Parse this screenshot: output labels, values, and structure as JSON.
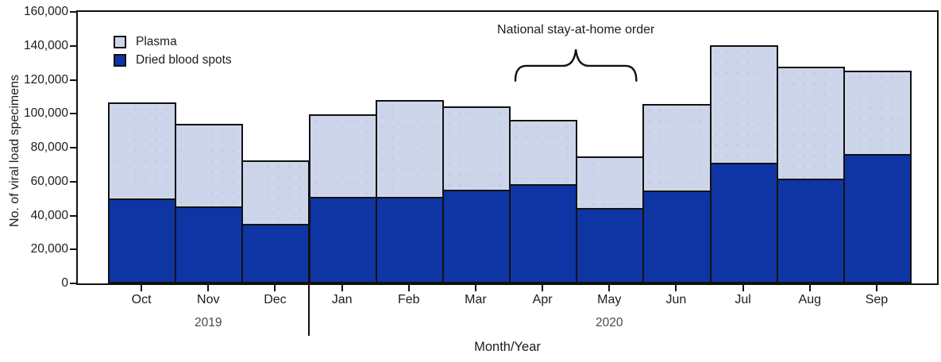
{
  "chart_data": {
    "type": "bar",
    "stacked": true,
    "xlabel": "Month/Year",
    "ylabel": "No. of viral load specimens",
    "ylim": [
      0,
      160000
    ],
    "ytick_step": 20000,
    "ytick_labels": [
      "0",
      "20,000",
      "40,000",
      "60,000",
      "80,000",
      "100,000",
      "120,000",
      "140,000",
      "160,000"
    ],
    "categories": [
      "Oct",
      "Nov",
      "Dec",
      "Jan",
      "Feb",
      "Mar",
      "Apr",
      "May",
      "Jun",
      "Jul",
      "Aug",
      "Sep"
    ],
    "series": [
      {
        "name": "Plasma",
        "color": "#cdd5ea",
        "values": [
          57500,
          49500,
          38500,
          49500,
          58000,
          50000,
          39000,
          31500,
          51500,
          70500,
          66500,
          50000
        ]
      },
      {
        "name": "Dried blood spots",
        "color": "#0e35a3",
        "values": [
          49000,
          44500,
          34000,
          50000,
          50000,
          54500,
          57500,
          43500,
          54000,
          70000,
          61000,
          75500
        ]
      }
    ],
    "year_groups": [
      {
        "label": "2019",
        "months": [
          "Oct",
          "Nov",
          "Dec"
        ]
      },
      {
        "label": "2020",
        "months": [
          "Jan",
          "Feb",
          "Mar",
          "Apr",
          "May",
          "Jun",
          "Jul",
          "Aug",
          "Sep"
        ]
      }
    ],
    "annotation": {
      "text": "National stay-at-home order",
      "span_months": [
        "Apr",
        "May"
      ]
    },
    "legend_position": "top-left",
    "grid": false,
    "outline_color": "#111111",
    "text_color": "#1c1c1c",
    "year_label_color": "#4a4a4a"
  }
}
